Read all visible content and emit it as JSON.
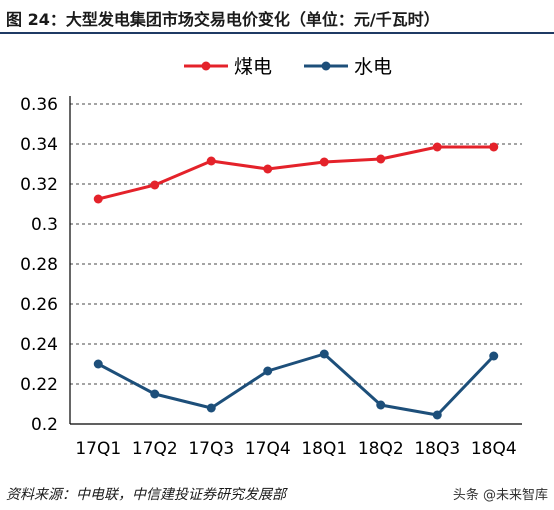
{
  "title": "图 24：大型发电集团市场交易电价变化（单位：元/千瓦时）",
  "source": "资料来源：中电联，中信建投证券研究发展部",
  "watermark": "头条 @未来智库",
  "colors": {
    "coal": "#e4222a",
    "hydro": "#1d4f7a",
    "title_rule": "#1f3a64",
    "grid": "#4a4a4a"
  },
  "chart_data": {
    "type": "line",
    "categories": [
      "17Q1",
      "17Q2",
      "17Q3",
      "17Q4",
      "18Q1",
      "18Q2",
      "18Q3",
      "18Q4"
    ],
    "series": [
      {
        "name": "煤电",
        "color": "#e4222a",
        "values": [
          0.3125,
          0.3195,
          0.3315,
          0.3275,
          0.331,
          0.3325,
          0.3385,
          0.3385
        ]
      },
      {
        "name": "水电",
        "color": "#1d4f7a",
        "values": [
          0.23,
          0.215,
          0.208,
          0.2265,
          0.235,
          0.2095,
          0.2045,
          0.234
        ]
      }
    ],
    "ylim": [
      0.2,
      0.36
    ],
    "yticks": [
      "0.36",
      "0.34",
      "0.32",
      "0.3",
      "0.28",
      "0.26",
      "0.24",
      "0.22",
      "0.2"
    ],
    "ytick_values": [
      0.36,
      0.34,
      0.32,
      0.3,
      0.28,
      0.26,
      0.24,
      0.22,
      0.2
    ],
    "grid": "dashed-horizontal",
    "legend": "top-center"
  }
}
